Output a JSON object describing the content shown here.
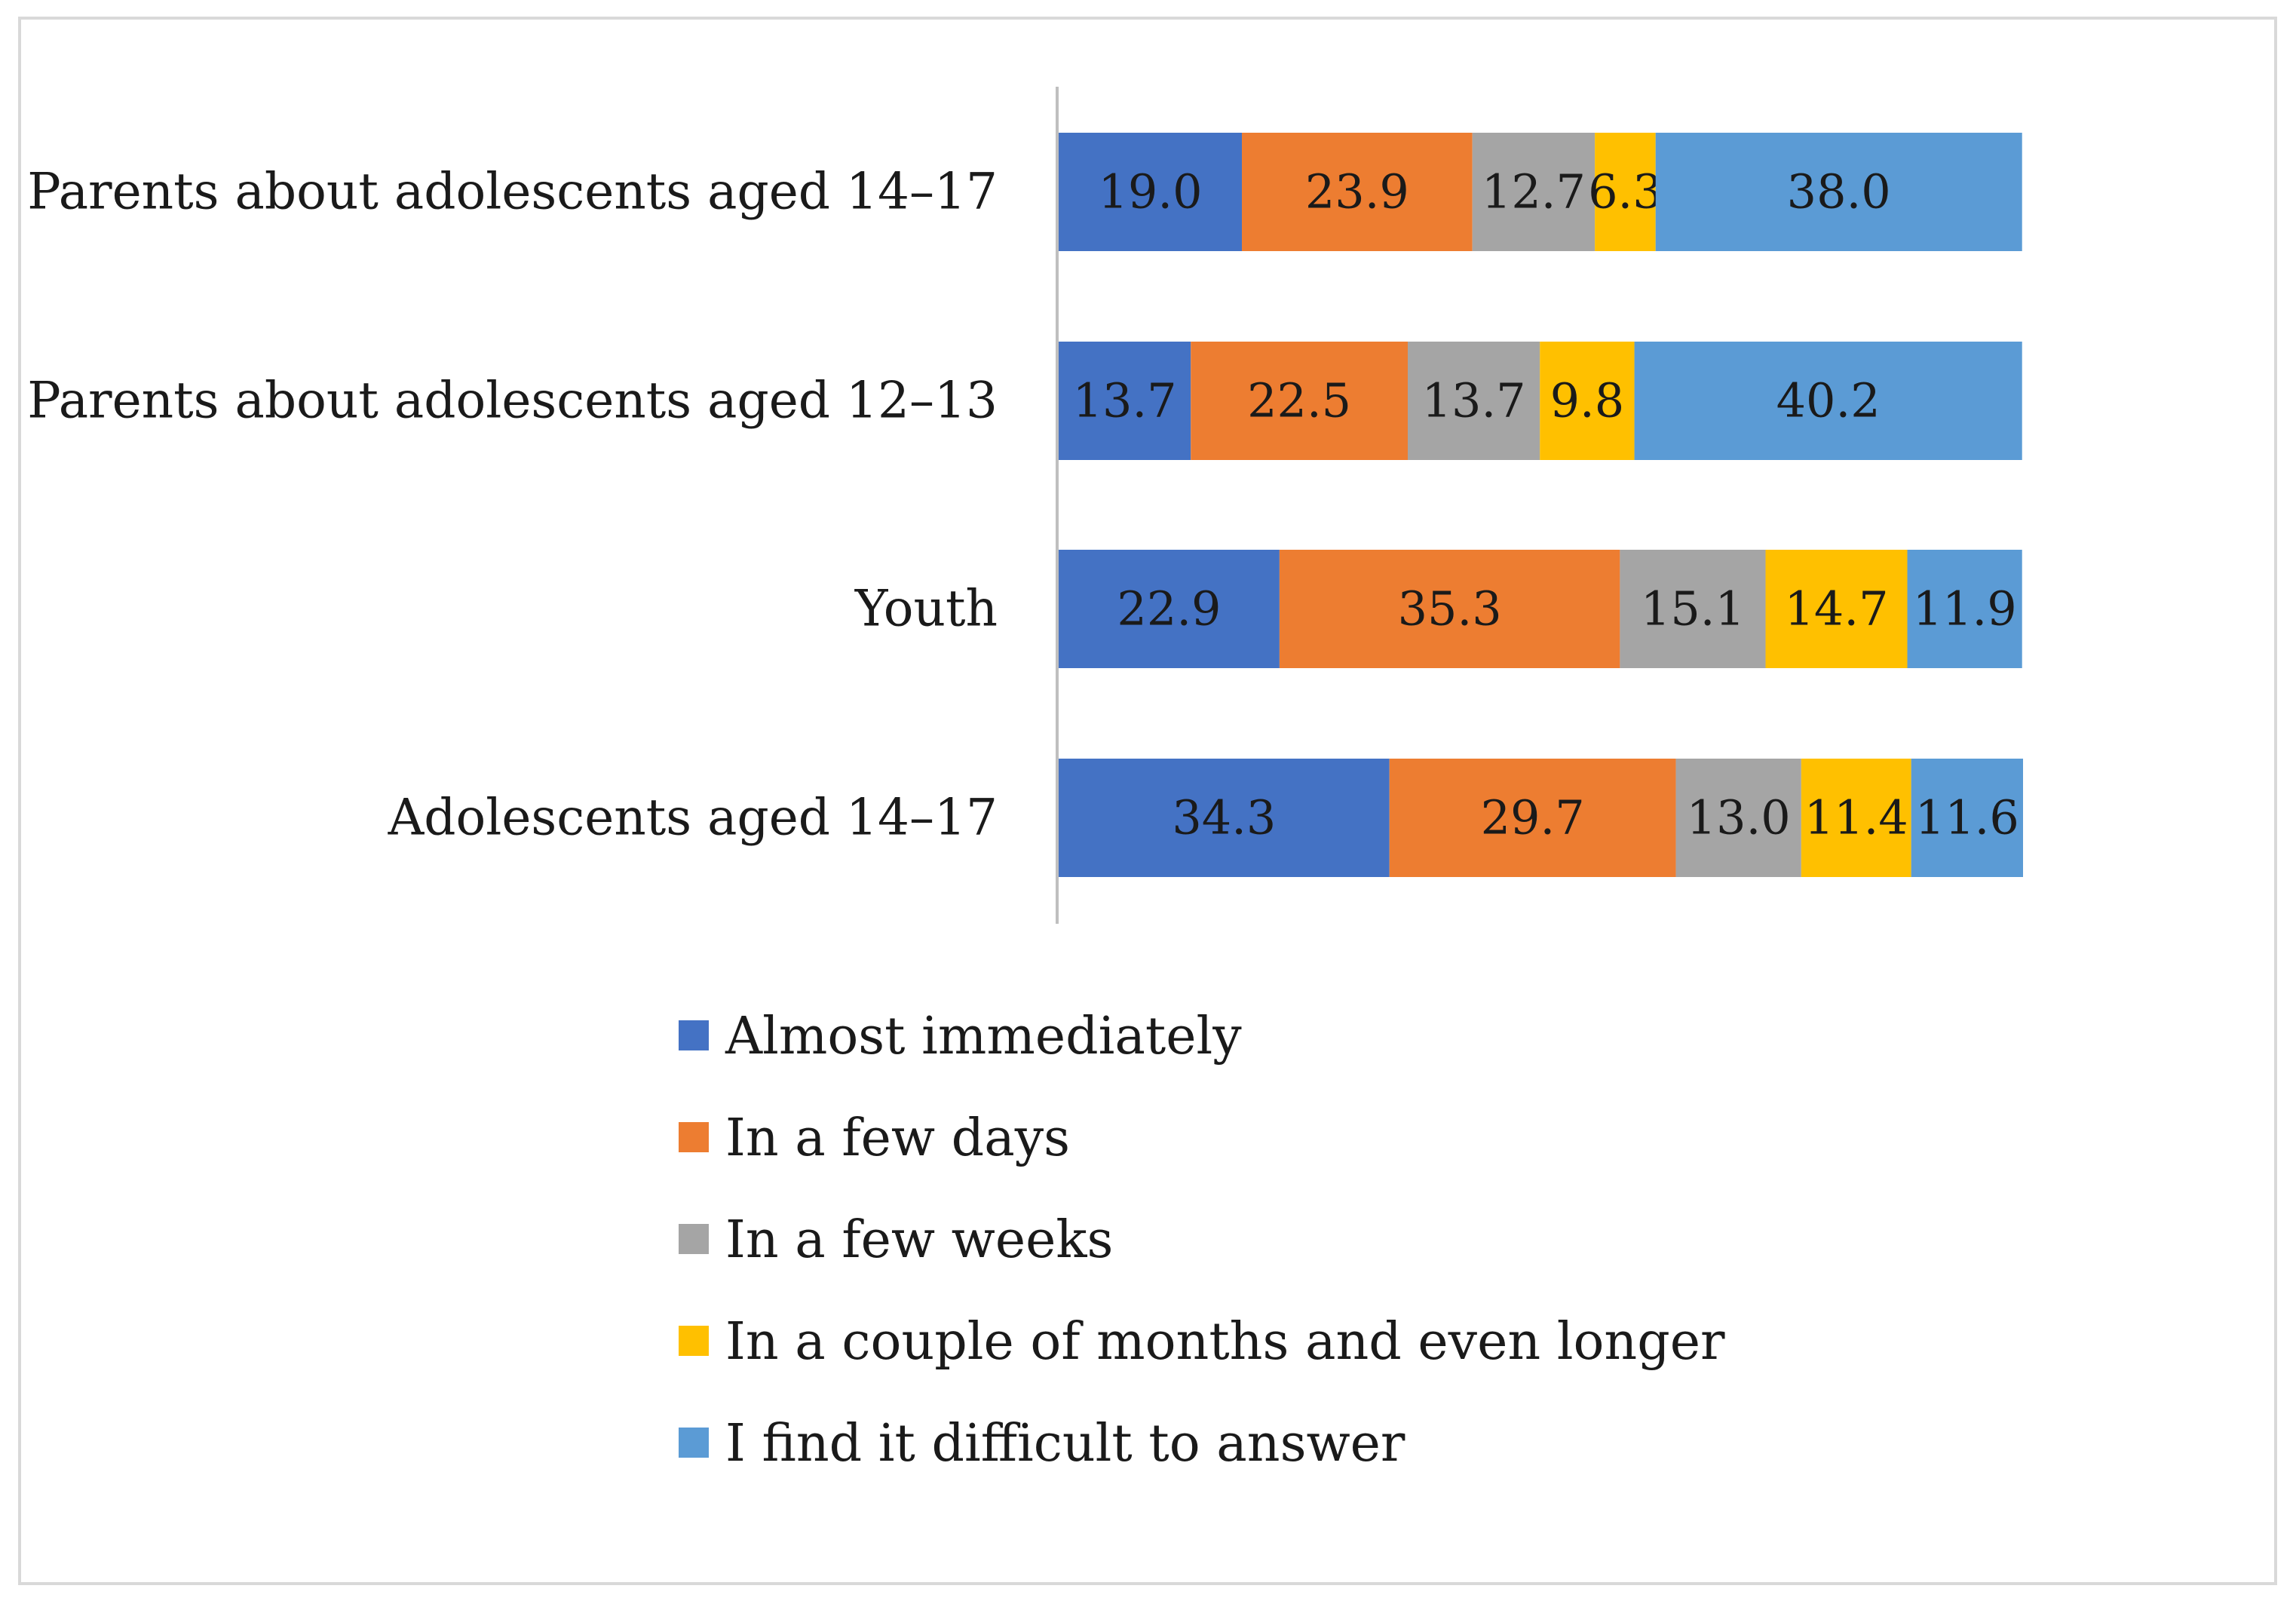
{
  "chart_data": {
    "type": "bar",
    "orientation": "horizontal",
    "stacked": true,
    "normalized": true,
    "title": "",
    "xlabel": "",
    "ylabel": "",
    "xlim": [
      0,
      100
    ],
    "grid": false,
    "legend_position": "bottom",
    "categories": [
      "Parents about adolescents aged 14–17",
      "Parents about adolescents aged 12–13",
      "Youth",
      "Adolescents aged 14–17"
    ],
    "series": [
      {
        "name": "Almost immediately",
        "color": "#4472C4",
        "values": [
          19.0,
          13.7,
          22.9,
          34.3
        ],
        "labels": [
          "19.0",
          "13.7",
          "22.9",
          "34.3"
        ]
      },
      {
        "name": "In a few days",
        "color": "#ED7D31",
        "values": [
          23.9,
          22.5,
          35.3,
          29.7
        ],
        "labels": [
          "23.9",
          "22.5",
          "35.3",
          "29.7"
        ]
      },
      {
        "name": "In a few weeks",
        "color": "#A5A5A5",
        "values": [
          12.7,
          13.7,
          15.1,
          13.0
        ],
        "labels": [
          "12.7",
          "13.7",
          "15.1",
          "13.0"
        ]
      },
      {
        "name": "In a couple of months and even longer",
        "color": "#FFC000",
        "values": [
          6.3,
          9.8,
          14.7,
          11.4
        ],
        "labels": [
          "6.3",
          "9.8",
          "14.7",
          "11.4"
        ]
      },
      {
        "name": "I find it difficult to answer",
        "color": "#5B9BD5",
        "values": [
          38.0,
          40.2,
          11.9,
          11.6
        ],
        "labels": [
          "38.0",
          "40.2",
          "11.9",
          "11.6"
        ]
      }
    ]
  }
}
